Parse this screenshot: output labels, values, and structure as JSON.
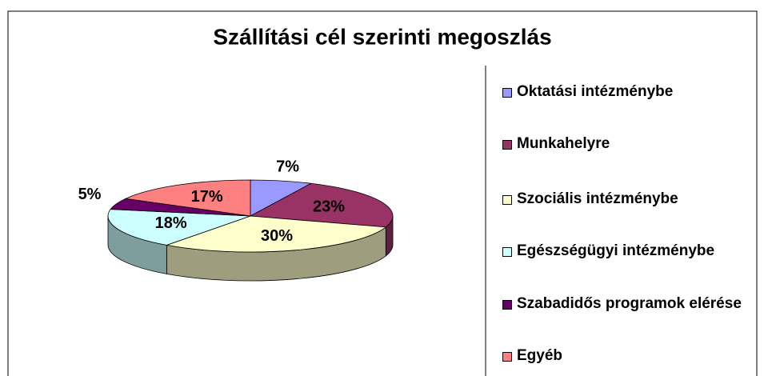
{
  "chart_data": {
    "type": "pie",
    "title": "Szállítási cél szerinti megoszlás",
    "categories": [
      "Oktatási intézménybe",
      "Munkahelyre",
      "Szociális intézménybe",
      "Egészségügyi intézménybe",
      "Szabadidős programok elérése",
      "Egyéb"
    ],
    "values": [
      7,
      23,
      30,
      18,
      5,
      17
    ],
    "value_labels": [
      "7%",
      "23%",
      "30%",
      "18%",
      "5%",
      "17%"
    ],
    "colors": [
      "#9999ff",
      "#993366",
      "#ffffcc",
      "#ccffff",
      "#660066",
      "#ff8080"
    ],
    "legend": "right"
  }
}
